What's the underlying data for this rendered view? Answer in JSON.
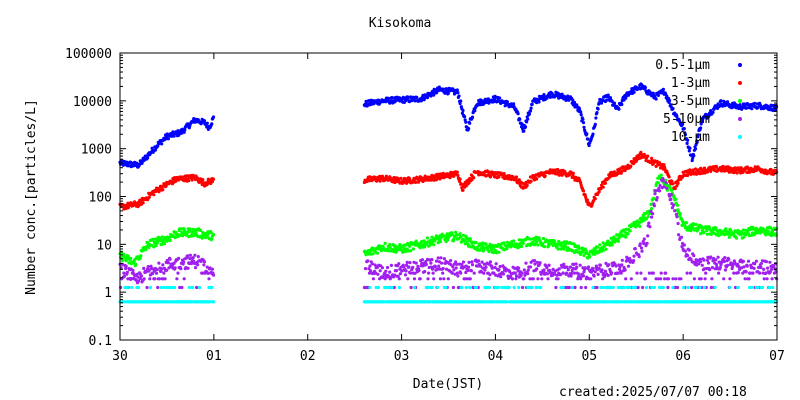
{
  "chart_data": {
    "type": "scatter",
    "title": "Kisokoma",
    "xlabel": "Date(JST)",
    "ylabel": "Number conc.[particles/L]",
    "yscale": "log",
    "ylim": [
      0.1,
      100000
    ],
    "ytick_labels": [
      "0.1",
      "1",
      "10",
      "100",
      "1000",
      "10000",
      "100000"
    ],
    "xlim_days": [
      0,
      7
    ],
    "xtick_labels": [
      "30",
      "01",
      "02",
      "03",
      "04",
      "05",
      "06",
      "07"
    ],
    "grid": false,
    "legend_position": "top-right",
    "data_gap": {
      "start_day": 1.0,
      "end_day": 2.6
    },
    "series": [
      {
        "name": "0.5-1μm",
        "color": "#0000ff",
        "points": [
          [
            0.0,
            500
          ],
          [
            0.2,
            450
          ],
          [
            0.4,
            1200
          ],
          [
            0.5,
            1800
          ],
          [
            0.65,
            2200
          ],
          [
            0.8,
            4000
          ],
          [
            0.9,
            3500
          ],
          [
            0.95,
            2800
          ],
          [
            1.0,
            4500
          ],
          [
            2.6,
            8500
          ],
          [
            2.8,
            10000
          ],
          [
            3.0,
            10500
          ],
          [
            3.2,
            11000
          ],
          [
            3.4,
            17000
          ],
          [
            3.6,
            15000
          ],
          [
            3.65,
            6000
          ],
          [
            3.7,
            2500
          ],
          [
            3.8,
            9000
          ],
          [
            4.0,
            11000
          ],
          [
            4.2,
            7500
          ],
          [
            4.3,
            2500
          ],
          [
            4.4,
            9500
          ],
          [
            4.6,
            14000
          ],
          [
            4.8,
            11000
          ],
          [
            4.9,
            6000
          ],
          [
            5.0,
            1200
          ],
          [
            5.05,
            2500
          ],
          [
            5.1,
            9000
          ],
          [
            5.2,
            12000
          ],
          [
            5.3,
            6500
          ],
          [
            5.4,
            14000
          ],
          [
            5.55,
            20000
          ],
          [
            5.7,
            12000
          ],
          [
            5.8,
            16000
          ],
          [
            5.9,
            6000
          ],
          [
            6.0,
            2800
          ],
          [
            6.1,
            600
          ],
          [
            6.2,
            4000
          ],
          [
            6.4,
            9000
          ],
          [
            6.6,
            7500
          ],
          [
            6.8,
            8000
          ],
          [
            7.0,
            7000
          ]
        ]
      },
      {
        "name": "1-3μm",
        "color": "#ff0000",
        "points": [
          [
            0.0,
            60
          ],
          [
            0.2,
            70
          ],
          [
            0.35,
            120
          ],
          [
            0.5,
            180
          ],
          [
            0.6,
            230
          ],
          [
            0.8,
            250
          ],
          [
            0.9,
            190
          ],
          [
            1.0,
            220
          ],
          [
            2.6,
            220
          ],
          [
            2.8,
            240
          ],
          [
            3.0,
            210
          ],
          [
            3.2,
            230
          ],
          [
            3.4,
            260
          ],
          [
            3.6,
            300
          ],
          [
            3.65,
            150
          ],
          [
            3.7,
            200
          ],
          [
            3.8,
            330
          ],
          [
            4.0,
            280
          ],
          [
            4.2,
            250
          ],
          [
            4.3,
            160
          ],
          [
            4.4,
            250
          ],
          [
            4.6,
            330
          ],
          [
            4.8,
            300
          ],
          [
            4.9,
            200
          ],
          [
            5.0,
            60
          ],
          [
            5.05,
            90
          ],
          [
            5.2,
            260
          ],
          [
            5.4,
            400
          ],
          [
            5.55,
            750
          ],
          [
            5.7,
            500
          ],
          [
            5.8,
            400
          ],
          [
            5.9,
            150
          ],
          [
            6.0,
            300
          ],
          [
            6.2,
            350
          ],
          [
            6.4,
            380
          ],
          [
            6.6,
            350
          ],
          [
            6.8,
            380
          ],
          [
            7.0,
            300
          ]
        ]
      },
      {
        "name": "3-5μm",
        "color": "#00ff00",
        "points": [
          [
            0.0,
            6
          ],
          [
            0.15,
            4
          ],
          [
            0.3,
            10
          ],
          [
            0.5,
            13
          ],
          [
            0.6,
            17
          ],
          [
            0.8,
            18
          ],
          [
            0.9,
            16
          ],
          [
            1.0,
            15
          ],
          [
            2.6,
            6
          ],
          [
            2.8,
            9
          ],
          [
            3.0,
            8
          ],
          [
            3.2,
            10
          ],
          [
            3.4,
            13
          ],
          [
            3.6,
            15
          ],
          [
            3.8,
            9
          ],
          [
            4.0,
            8
          ],
          [
            4.2,
            10
          ],
          [
            4.4,
            12
          ],
          [
            4.6,
            10
          ],
          [
            4.8,
            9
          ],
          [
            5.0,
            6
          ],
          [
            5.2,
            10
          ],
          [
            5.4,
            18
          ],
          [
            5.55,
            30
          ],
          [
            5.65,
            50
          ],
          [
            5.75,
            300
          ],
          [
            5.8,
            200
          ],
          [
            5.9,
            100
          ],
          [
            6.0,
            25
          ],
          [
            6.2,
            20
          ],
          [
            6.4,
            18
          ],
          [
            6.6,
            16
          ],
          [
            6.8,
            20
          ],
          [
            7.0,
            18
          ]
        ]
      },
      {
        "name": "5-10μm",
        "color": "#a020f0",
        "points": [
          [
            0.0,
            3
          ],
          [
            0.2,
            2
          ],
          [
            0.4,
            3.5
          ],
          [
            0.6,
            4
          ],
          [
            0.8,
            4.5
          ],
          [
            1.0,
            3
          ],
          [
            2.6,
            4
          ],
          [
            2.8,
            2.5
          ],
          [
            3.0,
            3
          ],
          [
            3.2,
            3.5
          ],
          [
            3.4,
            4
          ],
          [
            3.6,
            3
          ],
          [
            3.8,
            3.5
          ],
          [
            4.0,
            3
          ],
          [
            4.2,
            2.5
          ],
          [
            4.4,
            3.5
          ],
          [
            4.6,
            3
          ],
          [
            4.8,
            3
          ],
          [
            5.0,
            2.5
          ],
          [
            5.2,
            3
          ],
          [
            5.4,
            4
          ],
          [
            5.6,
            10
          ],
          [
            5.7,
            100
          ],
          [
            5.8,
            200
          ],
          [
            5.9,
            60
          ],
          [
            6.0,
            8
          ],
          [
            6.2,
            4
          ],
          [
            6.4,
            4
          ],
          [
            6.6,
            3.5
          ],
          [
            6.8,
            3.5
          ],
          [
            7.0,
            3
          ]
        ]
      },
      {
        "name": "10-μm",
        "color": "#00ffff",
        "points": [
          [
            0.0,
            0.6
          ],
          [
            0.3,
            0.6
          ],
          [
            0.6,
            0.6
          ],
          [
            1.0,
            0.6
          ],
          [
            2.6,
            0.6
          ],
          [
            3.0,
            0.6
          ],
          [
            3.5,
            0.6
          ],
          [
            4.0,
            0.6
          ],
          [
            4.5,
            0.6
          ],
          [
            5.0,
            0.6
          ],
          [
            5.5,
            0.6
          ],
          [
            5.7,
            10
          ],
          [
            5.8,
            3
          ],
          [
            6.0,
            0.6
          ],
          [
            6.5,
            0.6
          ],
          [
            7.0,
            0.6
          ]
        ]
      }
    ]
  },
  "footer": {
    "created": "created:2025/07/07 00:18"
  }
}
